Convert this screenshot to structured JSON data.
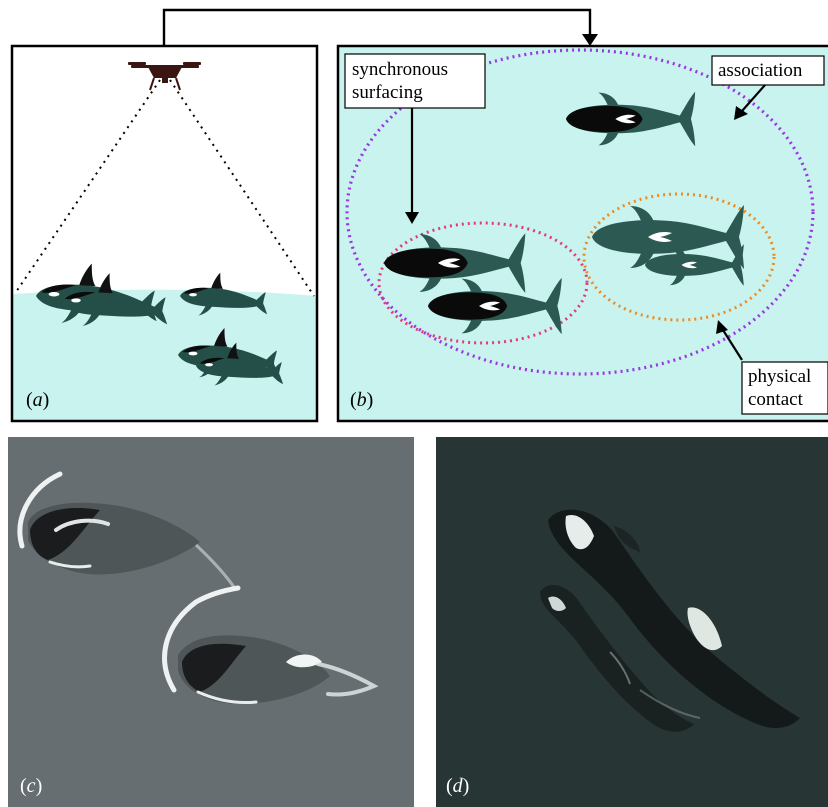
{
  "panels": {
    "a": {
      "label": "a"
    },
    "b": {
      "label": "b"
    },
    "c": {
      "label": "c"
    },
    "d": {
      "label": "d"
    }
  },
  "annotations": {
    "synchronous_line1": "synchronous",
    "synchronous_line2": "surfacing",
    "association": "association",
    "physical_line1": "physical",
    "physical_line2": "contact"
  },
  "colors": {
    "water": "#c8f3ee",
    "orca_body": "#2c5a52",
    "orca_black": "#0a0a0a",
    "association_ring": "#9b35e6",
    "synchronous_ring": "#e6397c",
    "physical_ring": "#f08a1c",
    "photo_c_sea": "#6a7276",
    "photo_d_sea": "#2b3a39"
  },
  "icons": [
    "drone-icon",
    "orca-icon"
  ]
}
